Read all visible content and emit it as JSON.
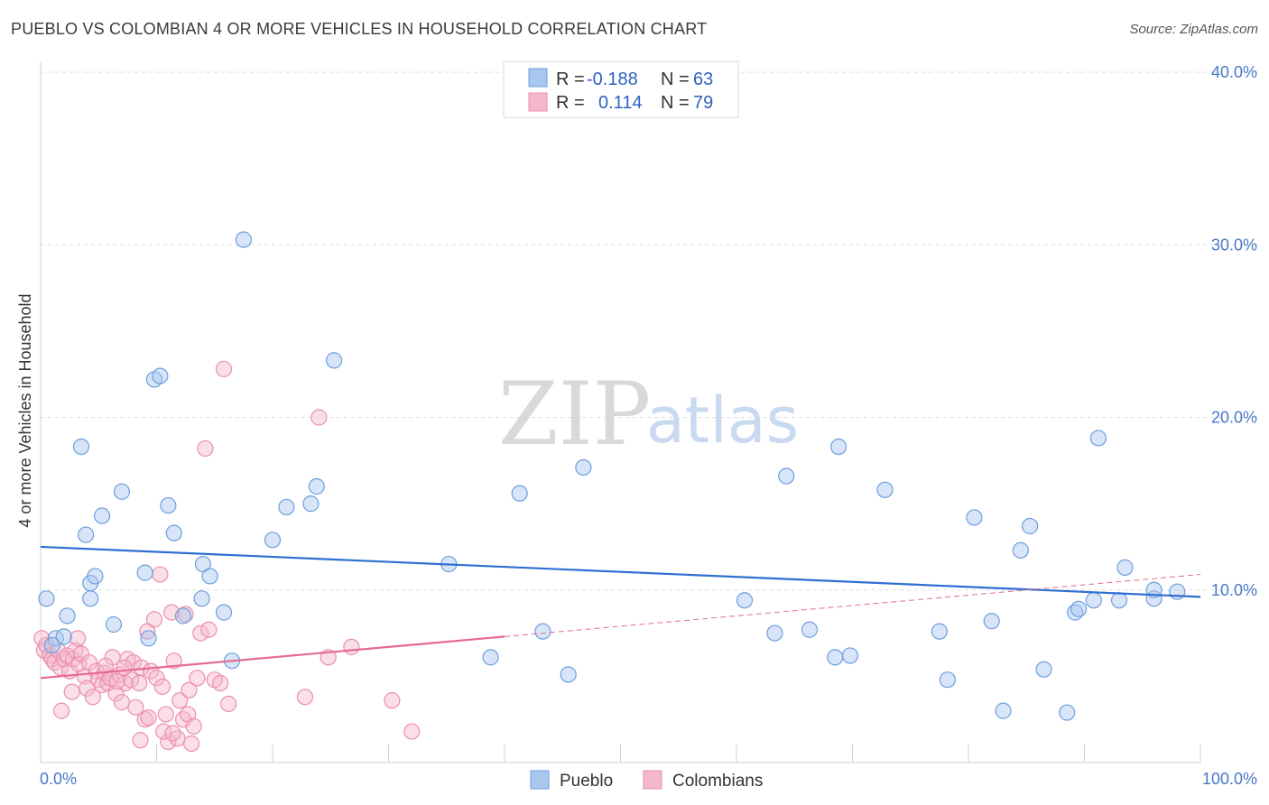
{
  "header": {
    "title": "PUEBLO VS COLOMBIAN 4 OR MORE VEHICLES IN HOUSEHOLD CORRELATION CHART",
    "source": "Source: ZipAtlas.com"
  },
  "watermark": {
    "zip": "ZIP",
    "atlas": "atlas"
  },
  "legend": {
    "rows": [
      {
        "r_label": "R =",
        "r_value": "-0.188",
        "n_label": "N =",
        "n_value": "63"
      },
      {
        "r_label": "R =",
        "r_value": "0.114",
        "n_label": "N =",
        "n_value": "79"
      }
    ]
  },
  "bottom_legend": {
    "items": [
      "Pueblo",
      "Colombians"
    ]
  },
  "chart_data": {
    "type": "scatter",
    "ylabel": "4 or more Vehicles in Household",
    "xlim": [
      0,
      100
    ],
    "ylim": [
      0,
      40
    ],
    "grid": true,
    "y_ticks": [
      {
        "value": 10,
        "label": "10.0%"
      },
      {
        "value": 20,
        "label": "20.0%"
      },
      {
        "value": 30,
        "label": "30.0%"
      },
      {
        "value": 40,
        "label": "40.0%"
      }
    ],
    "x_tick_labels": [
      {
        "value": 0,
        "label": "0.0%"
      },
      {
        "value": 100,
        "label": "100.0%"
      }
    ],
    "colors": {
      "pueblo_fill": "#a9c6ef",
      "pueblo_stroke": "#6e9ede",
      "pueblo_line": "#2f6fd0",
      "colombian_fill": "#f5b8cb",
      "colombian_stroke": "#ec8fad",
      "colombian_line": "#e56a95",
      "grid": "#dcdcdc",
      "tick_text": "#4a78c8"
    },
    "series": [
      {
        "name": "Pueblo",
        "r": -0.188,
        "n": 63,
        "trend": {
          "x0": 0,
          "y0": 12.5,
          "x1": 100,
          "y1": 9.6,
          "dashed_from": null
        },
        "points": [
          [
            0.5,
            9.5
          ],
          [
            1.3,
            7.2
          ],
          [
            2.0,
            7.3
          ],
          [
            2.3,
            8.5
          ],
          [
            3.5,
            18.3
          ],
          [
            3.9,
            13.2
          ],
          [
            4.3,
            10.4
          ],
          [
            4.3,
            9.5
          ],
          [
            4.7,
            10.8
          ],
          [
            5.3,
            14.3
          ],
          [
            6.3,
            8.0
          ],
          [
            7.0,
            15.7
          ],
          [
            9.0,
            11.0
          ],
          [
            9.3,
            7.2
          ],
          [
            9.8,
            22.2
          ],
          [
            10.3,
            22.4
          ],
          [
            11.0,
            14.9
          ],
          [
            11.5,
            13.3
          ],
          [
            12.3,
            8.5
          ],
          [
            13.9,
            9.5
          ],
          [
            14.0,
            11.5
          ],
          [
            14.6,
            10.8
          ],
          [
            15.8,
            8.7
          ],
          [
            16.5,
            5.9
          ],
          [
            17.5,
            30.3
          ],
          [
            20.0,
            12.9
          ],
          [
            21.2,
            14.8
          ],
          [
            23.3,
            15.0
          ],
          [
            23.8,
            16.0
          ],
          [
            25.3,
            23.3
          ],
          [
            35.2,
            11.5
          ],
          [
            38.8,
            6.1
          ],
          [
            41.3,
            15.6
          ],
          [
            43.3,
            7.6
          ],
          [
            45.5,
            5.1
          ],
          [
            46.8,
            17.1
          ],
          [
            60.7,
            9.4
          ],
          [
            63.3,
            7.5
          ],
          [
            64.3,
            16.6
          ],
          [
            66.3,
            7.7
          ],
          [
            68.5,
            6.1
          ],
          [
            68.8,
            18.3
          ],
          [
            69.8,
            6.2
          ],
          [
            72.8,
            15.8
          ],
          [
            77.5,
            7.6
          ],
          [
            78.2,
            4.8
          ],
          [
            80.5,
            14.2
          ],
          [
            82.0,
            8.2
          ],
          [
            83.0,
            3.0
          ],
          [
            84.5,
            12.3
          ],
          [
            85.3,
            13.7
          ],
          [
            86.5,
            5.4
          ],
          [
            88.5,
            2.9
          ],
          [
            89.2,
            8.7
          ],
          [
            89.5,
            8.9
          ],
          [
            90.8,
            9.4
          ],
          [
            91.2,
            18.8
          ],
          [
            93.0,
            9.4
          ],
          [
            93.5,
            11.3
          ],
          [
            96.0,
            9.5
          ],
          [
            96.0,
            10.0
          ],
          [
            98.0,
            9.9
          ],
          [
            1.0,
            6.8
          ]
        ]
      },
      {
        "name": "Colombians",
        "r": 0.114,
        "n": 79,
        "trend": {
          "x0": 0,
          "y0": 4.9,
          "x1": 100,
          "y1": 10.9,
          "dashed_from": 40
        },
        "points": [
          [
            0.1,
            7.2
          ],
          [
            0.3,
            6.5
          ],
          [
            0.5,
            6.8
          ],
          [
            0.8,
            6.2
          ],
          [
            1.0,
            6.0
          ],
          [
            1.2,
            5.8
          ],
          [
            1.5,
            6.5
          ],
          [
            1.7,
            5.5
          ],
          [
            1.8,
            3.0
          ],
          [
            2.0,
            6.0
          ],
          [
            2.3,
            6.2
          ],
          [
            2.5,
            5.3
          ],
          [
            2.8,
            6.0
          ],
          [
            3.0,
            6.5
          ],
          [
            3.2,
            7.2
          ],
          [
            3.3,
            5.7
          ],
          [
            3.5,
            6.3
          ],
          [
            3.8,
            5.0
          ],
          [
            4.0,
            4.3
          ],
          [
            4.2,
            5.8
          ],
          [
            4.5,
            3.8
          ],
          [
            4.8,
            5.3
          ],
          [
            5.0,
            4.8
          ],
          [
            5.3,
            4.5
          ],
          [
            5.5,
            5.2
          ],
          [
            5.8,
            4.6
          ],
          [
            6.0,
            4.9
          ],
          [
            6.2,
            6.1
          ],
          [
            6.5,
            4.0
          ],
          [
            6.8,
            5.1
          ],
          [
            7.0,
            3.5
          ],
          [
            7.3,
            4.6
          ],
          [
            7.5,
            6.0
          ],
          [
            7.8,
            4.8
          ],
          [
            8.0,
            5.8
          ],
          [
            8.2,
            3.2
          ],
          [
            8.5,
            4.6
          ],
          [
            8.7,
            5.5
          ],
          [
            9.0,
            2.5
          ],
          [
            9.2,
            7.6
          ],
          [
            9.5,
            5.3
          ],
          [
            9.8,
            8.3
          ],
          [
            10.0,
            4.9
          ],
          [
            10.3,
            10.9
          ],
          [
            10.5,
            4.4
          ],
          [
            10.8,
            2.8
          ],
          [
            11.0,
            1.2
          ],
          [
            11.3,
            8.7
          ],
          [
            11.5,
            5.9
          ],
          [
            11.8,
            1.4
          ],
          [
            12.0,
            3.6
          ],
          [
            12.3,
            2.5
          ],
          [
            12.5,
            8.6
          ],
          [
            12.8,
            4.2
          ],
          [
            13.0,
            1.1
          ],
          [
            13.5,
            4.9
          ],
          [
            13.8,
            7.5
          ],
          [
            14.2,
            18.2
          ],
          [
            14.5,
            7.7
          ],
          [
            15.0,
            4.8
          ],
          [
            15.5,
            4.6
          ],
          [
            15.8,
            22.8
          ],
          [
            16.2,
            3.4
          ],
          [
            12.7,
            2.8
          ],
          [
            13.2,
            2.1
          ],
          [
            7.2,
            5.5
          ],
          [
            10.6,
            1.8
          ],
          [
            22.8,
            3.8
          ],
          [
            24.0,
            20.0
          ],
          [
            24.8,
            6.1
          ],
          [
            26.8,
            6.7
          ],
          [
            30.3,
            3.6
          ],
          [
            32.0,
            1.8
          ],
          [
            8.6,
            1.3
          ],
          [
            11.4,
            1.7
          ],
          [
            6.6,
            4.7
          ],
          [
            5.6,
            5.6
          ],
          [
            9.3,
            2.6
          ],
          [
            2.7,
            4.1
          ]
        ]
      }
    ]
  }
}
